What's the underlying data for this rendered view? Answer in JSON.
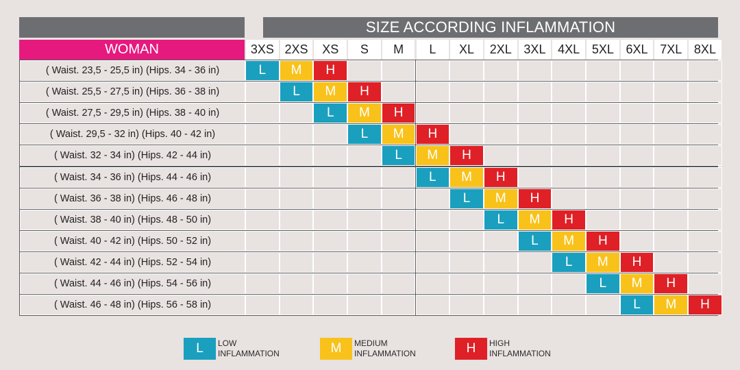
{
  "title": "SIZE ACCORDING INFLAMMATION",
  "group_label": "WOMAN",
  "sizes": [
    "3XS",
    "2XS",
    "XS",
    "S",
    "M",
    "L",
    "XL",
    "2XL",
    "3XL",
    "4XL",
    "5XL",
    "6XL",
    "7XL",
    "8XL"
  ],
  "colors": {
    "L": "#1b9fbe",
    "M": "#f8c21b",
    "H": "#df2026",
    "pink": "#e6197f",
    "header_gray": "#6d6e71"
  },
  "rows": [
    {
      "label": "( Waist. 23,5 - 25,5 in) (Hips. 34 - 36 in)",
      "start": 0
    },
    {
      "label": "( Waist. 25,5 - 27,5 in) (Hips. 36 - 38 in)",
      "start": 1
    },
    {
      "label": "( Waist. 27,5 - 29,5 in) (Hips. 38 - 40 in)",
      "start": 2
    },
    {
      "label": "( Waist. 29,5 - 32 in) (Hips. 40 - 42 in)",
      "start": 3
    },
    {
      "label": "( Waist. 32 - 34 in) (Hips. 42 - 44 in)",
      "start": 4
    },
    {
      "label": "( Waist. 34 - 36 in) (Hips. 44 - 46 in)",
      "start": 5
    },
    {
      "label": "( Waist. 36 - 38 in) (Hips. 46 - 48 in)",
      "start": 6
    },
    {
      "label": "( Waist. 38 - 40 in) (Hips. 48 - 50 in)",
      "start": 7
    },
    {
      "label": "( Waist. 40 - 42 in) (Hips. 50 - 52 in)",
      "start": 8
    },
    {
      "label": "( Waist. 42 - 44 in) (Hips. 52 - 54 in)",
      "start": 9
    },
    {
      "label": "( Waist. 44 - 46 in) (Hips. 54 - 56 in)",
      "start": 10
    },
    {
      "label": "( Waist. 46 - 48 in) (Hips. 56 - 58 in)",
      "start": 11
    }
  ],
  "levels": [
    "L",
    "M",
    "H"
  ],
  "legend": [
    {
      "key": "L",
      "line1": "LOW",
      "line2": "INFLAMMATION"
    },
    {
      "key": "M",
      "line1": "MEDIUM",
      "line2": "INFLAMMATION"
    },
    {
      "key": "H",
      "line1": "HIGH",
      "line2": "INFLAMMATION"
    }
  ]
}
